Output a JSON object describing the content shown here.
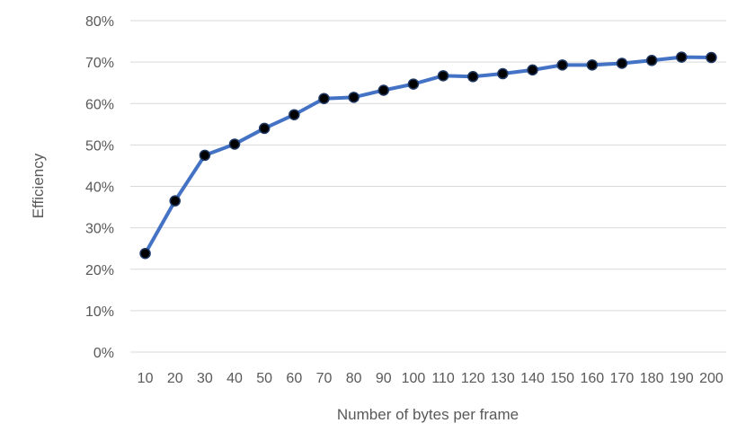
{
  "chart_data": {
    "type": "line",
    "title": "",
    "xlabel": "Number of bytes per frame",
    "ylabel": "Efficiency",
    "x": [
      10,
      20,
      30,
      40,
      50,
      60,
      70,
      80,
      90,
      100,
      110,
      120,
      130,
      140,
      150,
      160,
      170,
      180,
      190,
      200
    ],
    "x_tick_labels": [
      "10",
      "20",
      "30",
      "40",
      "50",
      "60",
      "70",
      "80",
      "90",
      "100",
      "110",
      "120",
      "130",
      "140",
      "150",
      "160",
      "170",
      "180",
      "190",
      "200"
    ],
    "y_tick_labels": [
      "0%",
      "10%",
      "20%",
      "30%",
      "40%",
      "50%",
      "60%",
      "70%",
      "80%"
    ],
    "y_ticks": [
      0,
      0.1,
      0.2,
      0.3,
      0.4,
      0.5,
      0.6,
      0.7,
      0.8
    ],
    "ylim": [
      0,
      0.8
    ],
    "grid": true,
    "legend": "none",
    "series": [
      {
        "values": [
          0.238,
          0.365,
          0.475,
          0.502,
          0.54,
          0.573,
          0.612,
          0.615,
          0.632,
          0.647,
          0.667,
          0.665,
          0.672,
          0.681,
          0.693,
          0.693,
          0.697,
          0.704,
          0.712,
          0.711
        ]
      }
    ],
    "colors": {
      "line": "#4472C4",
      "marker_fill": "#000000",
      "marker_stroke": "#1F3864",
      "gridline": "#D9D9D9",
      "text": "#595959"
    }
  }
}
